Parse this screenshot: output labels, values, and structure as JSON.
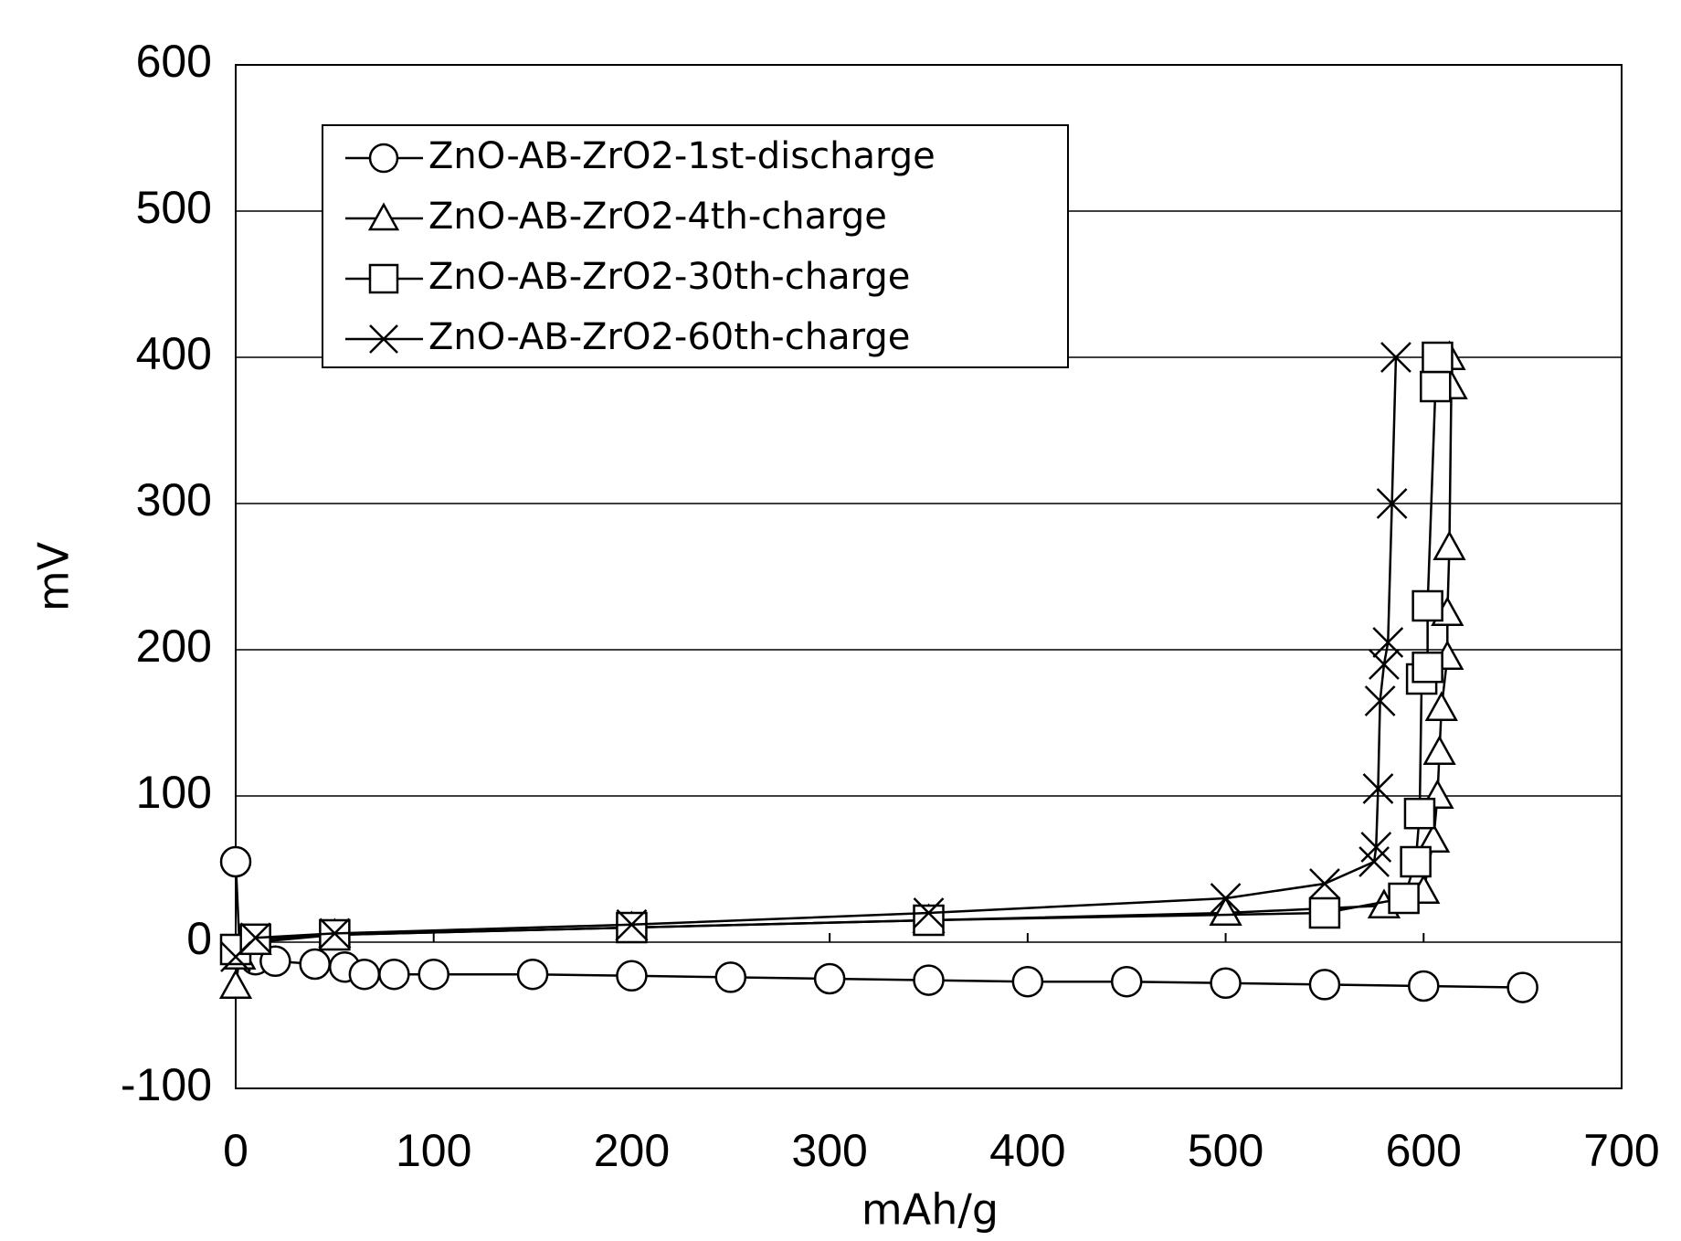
{
  "chart_data": {
    "type": "line",
    "x_label": "mAh/g",
    "y_label": "mV",
    "xlim": [
      0,
      700
    ],
    "xticks": [
      0,
      100,
      200,
      300,
      400,
      500,
      600,
      700
    ],
    "ylim": [
      -100,
      600
    ],
    "yticks": [
      -100,
      0,
      100,
      200,
      300,
      400,
      500,
      600
    ],
    "grid": true,
    "legend": "upper-left",
    "series": [
      {
        "name": "ZnO-AB-ZrO2-1st-discharge",
        "marker": "circle",
        "color": "#000000",
        "x": [
          0,
          2,
          10,
          20,
          40,
          55,
          65,
          80,
          100,
          150,
          200,
          250,
          300,
          350,
          400,
          450,
          500,
          550,
          600,
          650
        ],
        "values": [
          55,
          -5,
          -12,
          -13,
          -15,
          -17,
          -22,
          -22,
          -22,
          -22,
          -23,
          -24,
          -25,
          -26,
          -27,
          -27,
          -28,
          -29,
          -30,
          -31
        ]
      },
      {
        "name": "ZnO-AB-ZrO2-4th-charge",
        "marker": "triangle",
        "color": "#000000",
        "x": [
          0,
          2,
          10,
          50,
          200,
          350,
          500,
          580,
          600,
          605,
          607,
          608,
          609,
          612,
          612,
          613,
          614,
          613
        ],
        "values": [
          -30,
          -10,
          0,
          5,
          10,
          15,
          20,
          25,
          35,
          70,
          100,
          130,
          160,
          195,
          225,
          270,
          380,
          400
        ]
      },
      {
        "name": "ZnO-AB-ZrO2-30th-charge",
        "marker": "square",
        "color": "#000000",
        "x": [
          0,
          10,
          50,
          200,
          350,
          550,
          590,
          596,
          598,
          599,
          602,
          602,
          606,
          607
        ],
        "values": [
          -5,
          2,
          5,
          10,
          15,
          20,
          30,
          55,
          88,
          180,
          188,
          230,
          380,
          400
        ]
      },
      {
        "name": "ZnO-AB-ZrO2-60th-charge",
        "marker": "x",
        "color": "#000000",
        "x": [
          0,
          10,
          50,
          200,
          350,
          500,
          550,
          575,
          576,
          577,
          578,
          580,
          582,
          584,
          586
        ],
        "values": [
          -10,
          3,
          6,
          12,
          20,
          30,
          40,
          55,
          65,
          105,
          165,
          190,
          205,
          300,
          400
        ]
      }
    ]
  }
}
